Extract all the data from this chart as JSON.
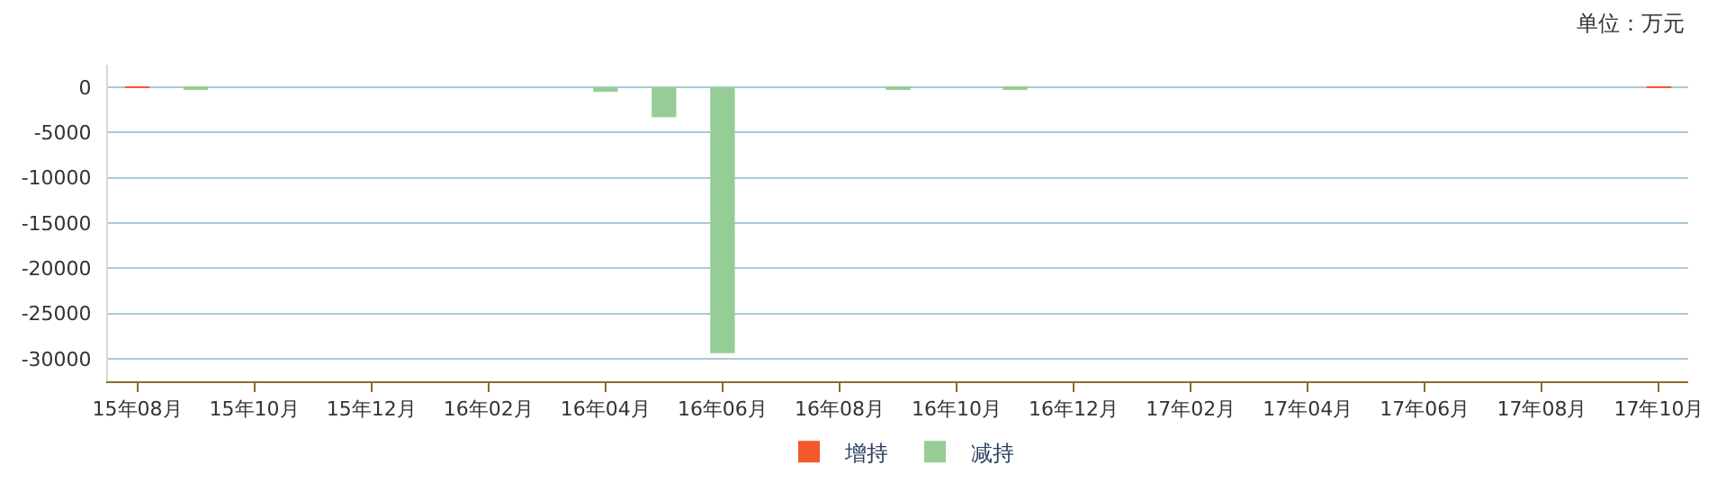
{
  "chart_data": {
    "type": "bar",
    "stacked": true,
    "categories": [
      "15年08月",
      null,
      "15年10月",
      null,
      "15年12月",
      null,
      "16年02月",
      null,
      "16年04月",
      null,
      "16年06月",
      null,
      "16年08月",
      null,
      "16年10月",
      null,
      "16年12月",
      null,
      "17年02月",
      null,
      "17年04月",
      null,
      "17年06月",
      null,
      "17年08月",
      null,
      "17年10月"
    ],
    "series": [
      {
        "name": "增持",
        "color": "#f4592c",
        "values": [
          100,
          null,
          null,
          null,
          null,
          null,
          null,
          null,
          null,
          null,
          null,
          null,
          null,
          null,
          null,
          null,
          null,
          null,
          null,
          null,
          null,
          null,
          null,
          null,
          null,
          null,
          100
        ]
      },
      {
        "name": "减持",
        "color": "#96cc96",
        "values": [
          null,
          -100,
          null,
          null,
          null,
          null,
          null,
          null,
          -500,
          -3300,
          -29400,
          null,
          null,
          -100,
          null,
          -100,
          null,
          null,
          null,
          null,
          null,
          null,
          null,
          null,
          null,
          null,
          null
        ]
      }
    ],
    "ylim": [
      -32500,
      2500
    ],
    "yticks": [
      -30000,
      -25000,
      -20000,
      -15000,
      -10000,
      -5000,
      0
    ],
    "grid": "y",
    "legend": "bottom",
    "annotations": [
      "单位：万元"
    ]
  }
}
